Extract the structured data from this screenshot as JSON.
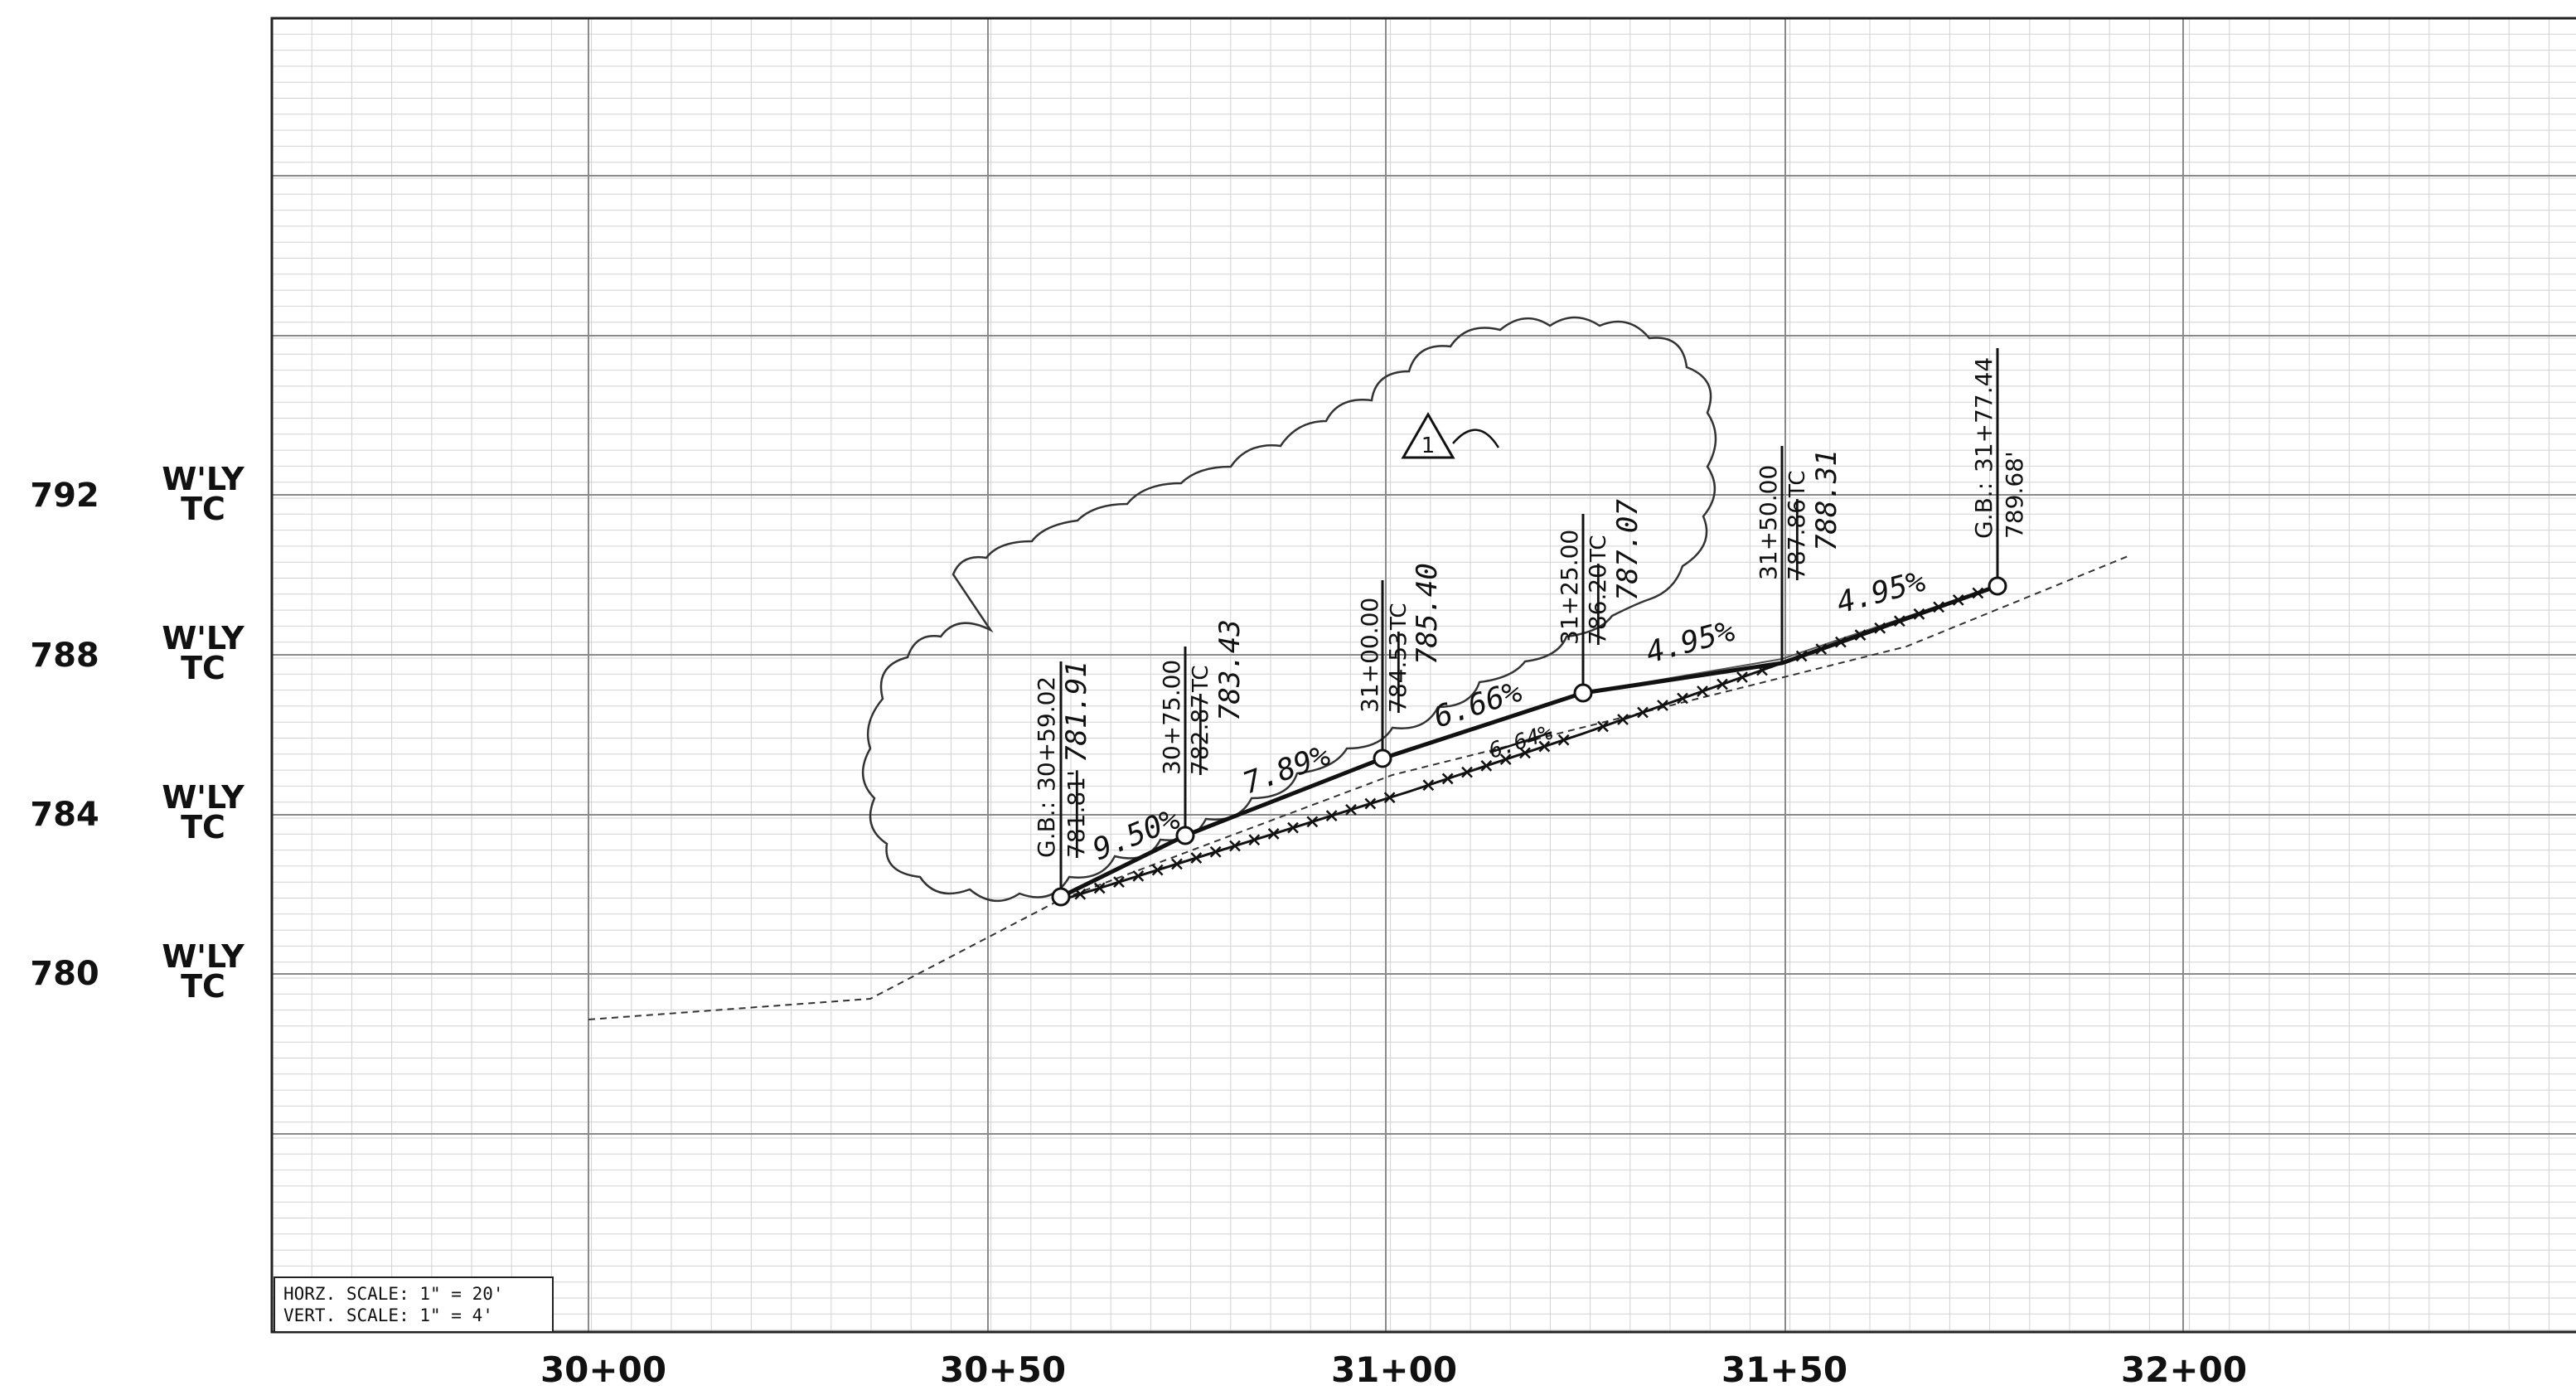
{
  "elevation_labels": [
    {
      "value": "792",
      "label_line1": "W'LY",
      "label_line2": "TC"
    },
    {
      "value": "788",
      "label_line1": "W'LY",
      "label_line2": "TC"
    },
    {
      "value": "784",
      "label_line1": "W'LY",
      "label_line2": "TC"
    },
    {
      "value": "780",
      "label_line1": "W'LY",
      "label_line2": "TC"
    }
  ],
  "station_labels": [
    "30+00",
    "30+50",
    "31+00",
    "31+50",
    "32+00"
  ],
  "scale_note": {
    "horizontal": "HORZ. SCALE: 1\" = 20'",
    "vertical": "VERT. SCALE: 1\" = 4'"
  },
  "revision_marker": "1",
  "profile_points": [
    {
      "prefix": "G.B.:",
      "station": "30+59.02",
      "old_elev": "781.81'",
      "new_elev": "781.91",
      "suffix": ""
    },
    {
      "prefix": "",
      "station": "30+75.00",
      "old_elev": "782.87",
      "new_elev": "783.43",
      "suffix": "TC"
    },
    {
      "prefix": "",
      "station": "31+00.00",
      "old_elev": "784.53",
      "new_elev": "785.40",
      "suffix": "TC"
    },
    {
      "prefix": "",
      "station": "31+25.00",
      "old_elev": "786.20",
      "new_elev": "787.07",
      "suffix": "TC"
    },
    {
      "prefix": "",
      "station": "31+50.00",
      "old_elev": "787.86",
      "new_elev": "788.31",
      "suffix": "TC"
    },
    {
      "prefix": "G.B.:",
      "station": "31+77.44",
      "old_elev": "",
      "new_elev": "789.68'",
      "suffix": ""
    }
  ],
  "grade_labels": [
    "9.50%",
    "7.89%",
    "6.66%",
    "6.64%",
    "4.95%",
    "4.95%"
  ]
}
